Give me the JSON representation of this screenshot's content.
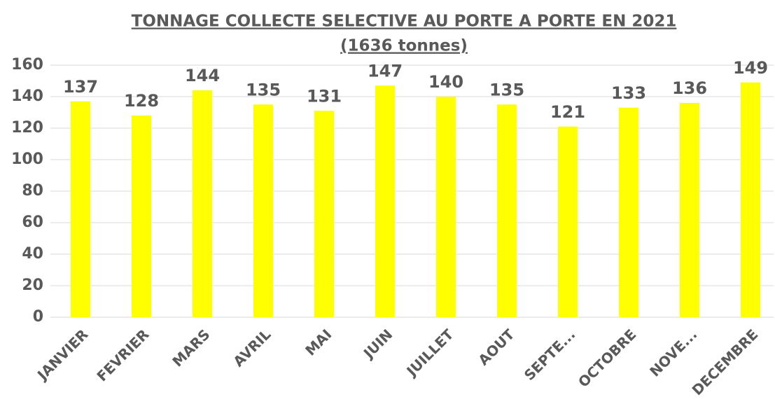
{
  "chart_data": {
    "type": "bar",
    "title": "TONNAGE COLLECTE SELECTIVE AU PORTE A PORTE EN 2021",
    "subtitle": "(1636 tonnes)",
    "categories": [
      "JANVIER",
      "FEVRIER",
      "MARS",
      "AVRIL",
      "MAI",
      "JUIN",
      "JUILLET",
      "AOUT",
      "SEPTE...",
      "OCTOBRE",
      "NOVE...",
      "DECEMBRE"
    ],
    "values": [
      137,
      128,
      144,
      135,
      131,
      147,
      140,
      135,
      121,
      133,
      136,
      149
    ],
    "color": "#ffff00",
    "ylim": [
      0,
      160
    ],
    "yticks": [
      0,
      20,
      40,
      60,
      80,
      100,
      120,
      140,
      160
    ],
    "grid": true
  }
}
